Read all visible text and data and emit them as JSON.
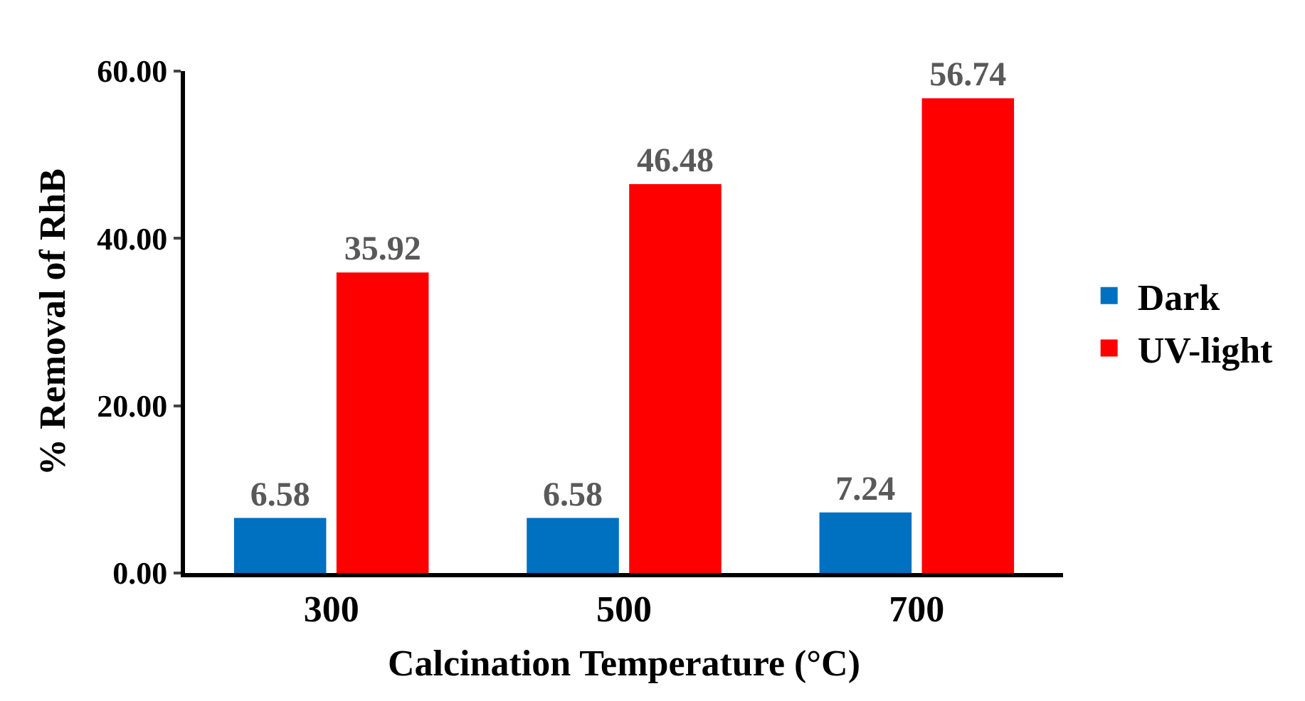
{
  "chart_data": {
    "type": "bar",
    "xlabel": "Calcination Temperature (°C)",
    "ylabel": "% Removal of RhB",
    "categories": [
      "300",
      "500",
      "700"
    ],
    "series": [
      {
        "name": "Dark",
        "color": "#0070c0",
        "values": [
          6.58,
          6.58,
          7.24
        ]
      },
      {
        "name": "UV-light",
        "color": "#ff0000",
        "values": [
          35.92,
          46.48,
          56.74
        ]
      }
    ],
    "ylim": [
      0,
      60
    ],
    "yticks": [
      {
        "value": 0,
        "label": "0.00"
      },
      {
        "value": 20,
        "label": "20.00"
      },
      {
        "value": 40,
        "label": "40.00"
      },
      {
        "value": 60,
        "label": "60.00"
      }
    ],
    "data_labels": true,
    "legend": "right"
  }
}
